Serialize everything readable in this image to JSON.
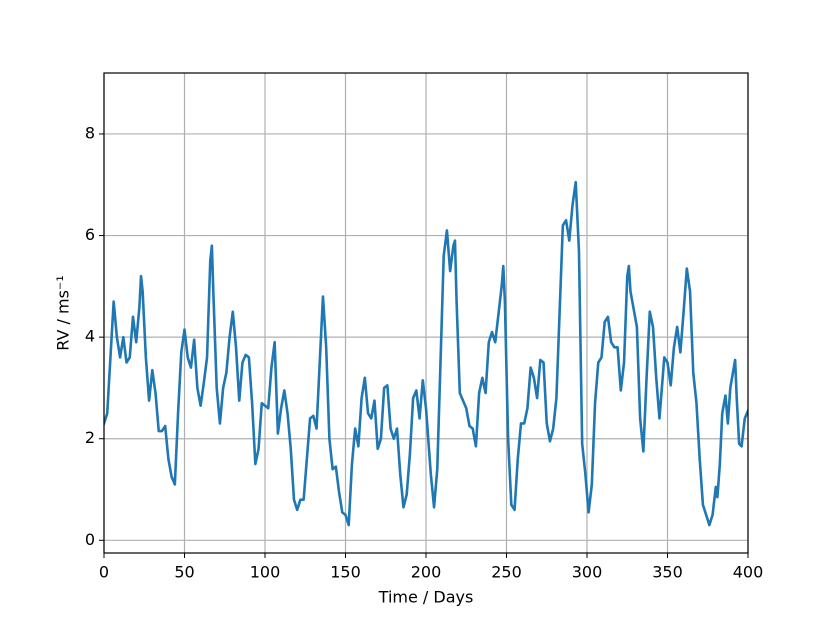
{
  "chart_data": {
    "type": "line",
    "x_label": "Time / Days",
    "y_label": "RV / ms⁻¹",
    "xlim": [
      0,
      400
    ],
    "xticks": [
      0,
      50,
      100,
      150,
      200,
      250,
      300,
      350,
      400
    ],
    "ylim": [
      -0.25,
      9.2
    ],
    "yticks": [
      0,
      2,
      4,
      6,
      8
    ],
    "grid": true,
    "color": "#1f77b4",
    "x": [
      0,
      2,
      4,
      6,
      8,
      10,
      12,
      14,
      16,
      18,
      20,
      22,
      23,
      24,
      26,
      28,
      30,
      32,
      34,
      36,
      38,
      40,
      42,
      44,
      46,
      48,
      50,
      52,
      54,
      56,
      58,
      60,
      62,
      64,
      66,
      67,
      68,
      70,
      72,
      74,
      76,
      78,
      80,
      82,
      84,
      86,
      88,
      90,
      92,
      94,
      96,
      98,
      102,
      104,
      106,
      108,
      110,
      112,
      114,
      116,
      118,
      120,
      122,
      124,
      126,
      128,
      130,
      132,
      134,
      136,
      138,
      140,
      142,
      144,
      146,
      148,
      150,
      152,
      154,
      156,
      158,
      160,
      162,
      164,
      166,
      168,
      170,
      172,
      174,
      176,
      178,
      180,
      182,
      184,
      186,
      188,
      190,
      192,
      194,
      196,
      198,
      200,
      203,
      205,
      207,
      209,
      211,
      213,
      215,
      217,
      218,
      219,
      221,
      225,
      227,
      229,
      231,
      233,
      235,
      237,
      239,
      241,
      243,
      247,
      248,
      249,
      251,
      253,
      255,
      257,
      259,
      261,
      263,
      265,
      267,
      269,
      271,
      273,
      275,
      277,
      279,
      281,
      283,
      285,
      287,
      289,
      291,
      293,
      295,
      297,
      299,
      301,
      303,
      305,
      307,
      309,
      311,
      313,
      315,
      317,
      319,
      321,
      323,
      325,
      326,
      327,
      329,
      331,
      333,
      335,
      337,
      339,
      341,
      343,
      345,
      348,
      350,
      352,
      354,
      356,
      358,
      360,
      362,
      364,
      366,
      368,
      370,
      372,
      374,
      376,
      378,
      380,
      381,
      382.5,
      384,
      386,
      387.5,
      389,
      392,
      393,
      394.5,
      396,
      398,
      400
    ],
    "values": [
      2.3,
      2.5,
      3.6,
      4.7,
      4.0,
      3.6,
      4.0,
      3.5,
      3.6,
      4.4,
      3.9,
      4.6,
      5.2,
      4.9,
      3.6,
      2.75,
      3.35,
      2.9,
      2.15,
      2.15,
      2.25,
      1.6,
      1.25,
      1.1,
      2.5,
      3.7,
      4.15,
      3.6,
      3.4,
      3.95,
      3.0,
      2.65,
      3.1,
      3.6,
      5.5,
      5.8,
      4.8,
      3.0,
      2.3,
      3.0,
      3.3,
      4.0,
      4.5,
      3.8,
      2.75,
      3.5,
      3.65,
      3.6,
      2.7,
      1.5,
      1.8,
      2.7,
      2.6,
      3.4,
      3.9,
      2.1,
      2.6,
      2.95,
      2.5,
      1.8,
      0.8,
      0.6,
      0.8,
      0.8,
      1.6,
      2.4,
      2.45,
      2.2,
      3.5,
      4.8,
      3.8,
      2.0,
      1.4,
      1.45,
      0.95,
      0.55,
      0.5,
      0.3,
      1.5,
      2.2,
      1.85,
      2.8,
      3.2,
      2.5,
      2.4,
      2.75,
      1.8,
      2.0,
      3.0,
      3.05,
      2.2,
      2.0,
      2.2,
      1.3,
      0.65,
      0.9,
      1.7,
      2.8,
      2.95,
      2.4,
      3.15,
      2.6,
      1.3,
      0.65,
      1.4,
      3.5,
      5.6,
      6.1,
      5.3,
      5.8,
      5.9,
      4.7,
      2.9,
      2.6,
      2.25,
      2.2,
      1.85,
      2.9,
      3.2,
      2.9,
      3.9,
      4.1,
      3.9,
      5.0,
      5.4,
      4.7,
      2.0,
      0.7,
      0.6,
      1.6,
      2.3,
      2.3,
      2.6,
      3.4,
      3.2,
      2.8,
      3.55,
      3.5,
      2.3,
      1.95,
      2.2,
      2.8,
      4.5,
      6.2,
      6.3,
      5.9,
      6.6,
      7.05,
      5.7,
      1.9,
      1.3,
      0.55,
      1.1,
      2.7,
      3.5,
      3.6,
      4.3,
      4.4,
      3.9,
      3.8,
      3.8,
      2.95,
      3.5,
      5.2,
      5.4,
      4.9,
      4.55,
      4.2,
      2.4,
      1.75,
      3.2,
      4.5,
      4.2,
      3.2,
      2.4,
      3.6,
      3.5,
      3.05,
      3.8,
      4.2,
      3.7,
      4.5,
      5.35,
      4.9,
      3.3,
      2.7,
      1.6,
      0.7,
      0.5,
      0.3,
      0.5,
      1.05,
      0.85,
      1.5,
      2.5,
      2.85,
      2.3,
      3.0,
      3.55,
      2.8,
      1.9,
      1.85,
      2.4,
      2.55
    ]
  }
}
